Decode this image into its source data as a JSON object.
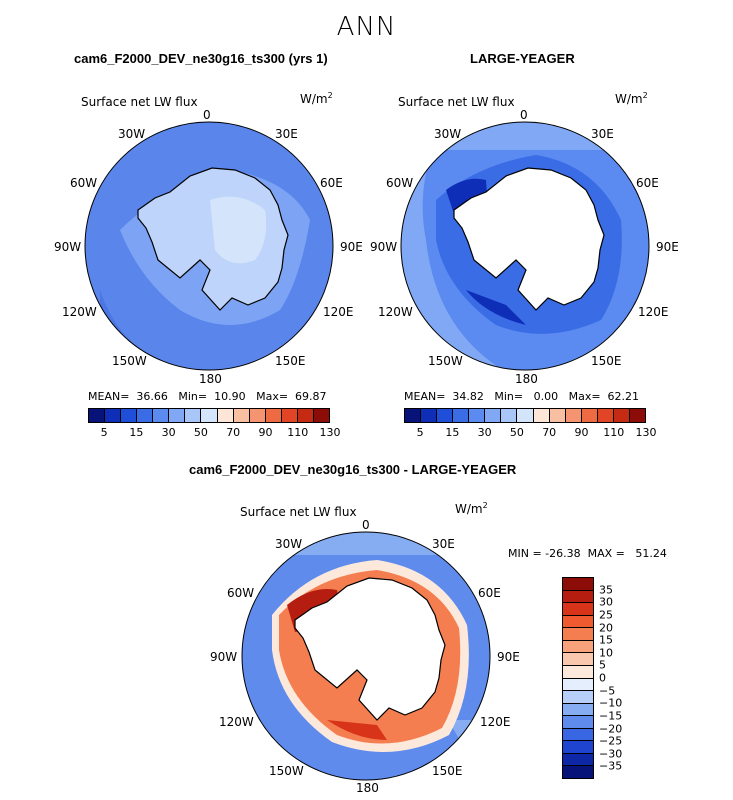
{
  "season": "ANN",
  "panels": {
    "left": {
      "title": "cam6_F2000_DEV_ne30g16_ts300 (yrs 1)",
      "variable": "Surface net LW flux",
      "units": "W/m",
      "units_sup": "2",
      "stats": "MEAN=  36.66   Min=  10.90   Max=  69.87"
    },
    "right": {
      "title": "LARGE-YEAGER",
      "variable": "Surface net LW flux",
      "units": "W/m",
      "units_sup": "2",
      "stats": "MEAN=  34.82   Min=   0.00   Max=  62.21"
    },
    "diff": {
      "title": "cam6_F2000_DEV_ne30g16_ts300 - LARGE-YEAGER",
      "variable": "Surface net LW flux",
      "units": "W/m",
      "units_sup": "2",
      "minmax": "MIN = -26.38  MAX =   51.24"
    }
  },
  "lon_labels": {
    "top": "0",
    "nne": "30E",
    "ene": "60E",
    "e": "90E",
    "ese": "120E",
    "sse": "150E",
    "bottom": "180",
    "ssw": "150W",
    "wsw": "120W",
    "w": "90W",
    "wnw": "60W",
    "nnw": "30W"
  },
  "colorbar_labels": [
    "5",
    "15",
    "30",
    "50",
    "70",
    "90",
    "110",
    "130"
  ],
  "colorbar_colors": [
    "#08137a",
    "#0f2eb8",
    "#1f4fd9",
    "#3a6ce6",
    "#5b8af0",
    "#80a8f5",
    "#a9c6f8",
    "#d3e4fb",
    "#fde6d8",
    "#f8c0a0",
    "#f59470",
    "#ee6a42",
    "#e24525",
    "#c52a12",
    "#8c0d08"
  ],
  "diff_colorbar_labels": [
    "35",
    "30",
    "25",
    "20",
    "15",
    "10",
    "5",
    "0",
    "−5",
    "−10",
    "−15",
    "−20",
    "−25",
    "−30",
    "−35"
  ],
  "diff_colorbar_colors": [
    "#8c0d08",
    "#b51d10",
    "#d8341a",
    "#ef5a30",
    "#f47e50",
    "#f7a27b",
    "#f9c7ad",
    "#fde8dc",
    "#e4eefc",
    "#b7cff8",
    "#86acf2",
    "#5e8bec",
    "#3966e3",
    "#1e44d0",
    "#0d27a6",
    "#08137a"
  ]
}
